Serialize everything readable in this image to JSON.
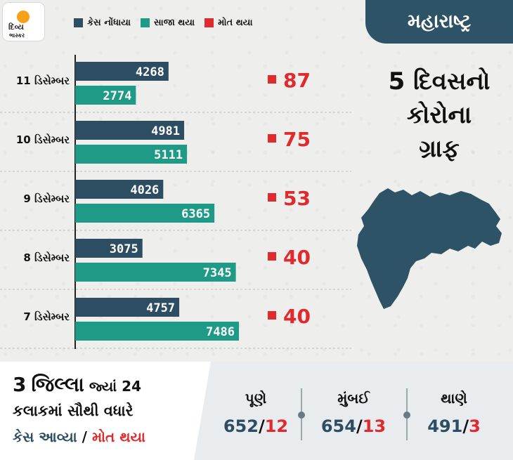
{
  "logo": {
    "line1": "દિવ્ય",
    "line2": "ભાસ્કર"
  },
  "colors": {
    "cases": "#2d4e62",
    "recovered": "#1f9a87",
    "deaths": "#e02a2d",
    "title_bg": "#2f5366"
  },
  "title_tag": "મહારાષ્ટ્ર",
  "subtitle": [
    "5 દિવસનો",
    "કોરોના",
    "ગ્રાફ"
  ],
  "chart_data": {
    "type": "bar",
    "orientation": "horizontal",
    "categories": [
      "11 ડિસેમ્બર",
      "10 ડિસેમ્બર",
      "9 ડિસેમ્બર",
      "8 ડિસેમ્બર",
      "7 ડિસેમ્બર"
    ],
    "series": [
      {
        "name": "કેસ નોંધાયા",
        "values": [
          4268,
          4981,
          4026,
          3075,
          4757
        ]
      },
      {
        "name": "સાજા થયા",
        "values": [
          2774,
          5111,
          6365,
          7345,
          7486
        ]
      },
      {
        "name": "મોત થયા",
        "values": [
          87,
          75,
          53,
          40,
          40
        ]
      }
    ],
    "legend_position": "top"
  },
  "bottom": {
    "head_num": "3",
    "head_word": "જિલ્લા",
    "head_rest": "જ્યાં 24",
    "line2": "કલાકમાં સૌથી વધારે",
    "line3_cases": "કેસ આવ્યા",
    "line3_sep": "/",
    "line3_deaths": "મોત થયા",
    "cities": [
      {
        "name": "પૂણે",
        "cases": "652",
        "sep": "/",
        "deaths": "12"
      },
      {
        "name": "મુંબઈ",
        "cases": "654",
        "sep": "/",
        "deaths": "13"
      },
      {
        "name": "થાણે",
        "cases": "491",
        "sep": "/",
        "deaths": "3"
      }
    ]
  }
}
